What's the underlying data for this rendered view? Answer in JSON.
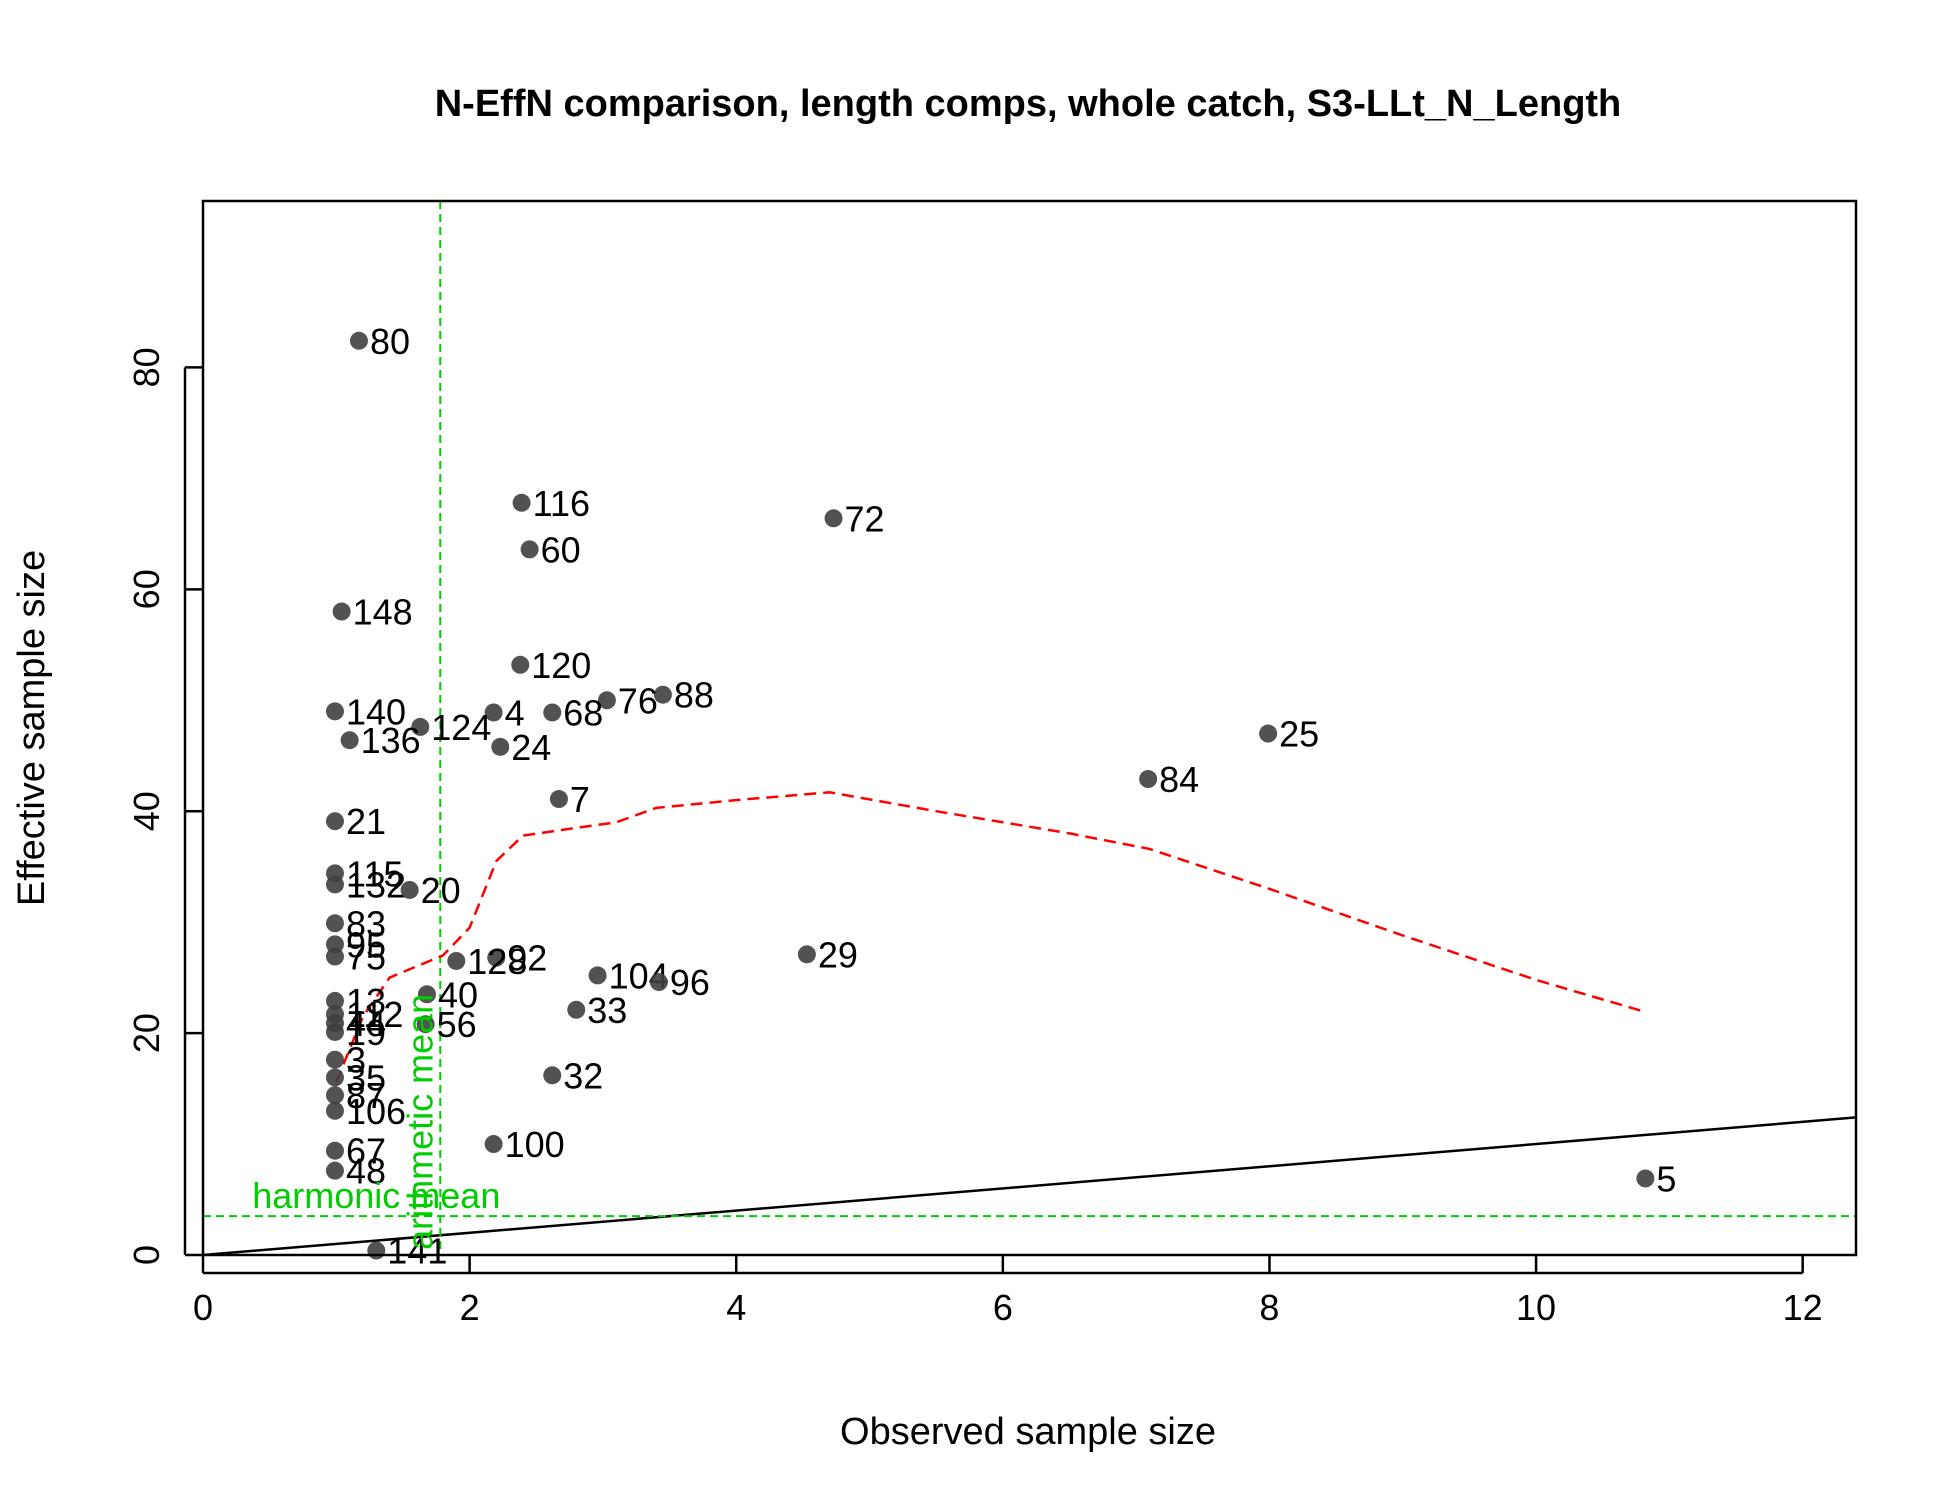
{
  "chart_data": {
    "type": "scatter",
    "title": "N-EffN comparison, length comps, whole catch, S3-LLt_N_Length",
    "xlabel": "Observed sample size",
    "ylabel": "Effective sample size",
    "xlim": [
      0,
      12.4
    ],
    "ylim": [
      0,
      95
    ],
    "xticks": [
      0,
      2,
      4,
      6,
      8,
      10,
      12
    ],
    "yticks": [
      0,
      20,
      40,
      60,
      80
    ],
    "colors": {
      "points": "#3f3f3f",
      "loess": "#ff0000",
      "reference": "#00cc00",
      "identity": "#000000"
    },
    "points": [
      {
        "label": "80",
        "x": 1.17,
        "y": 82.4
      },
      {
        "label": "116",
        "x": 2.39,
        "y": 67.8
      },
      {
        "label": "72",
        "x": 4.73,
        "y": 66.4
      },
      {
        "label": "60",
        "x": 2.45,
        "y": 63.6
      },
      {
        "label": "148",
        "x": 1.04,
        "y": 58.0
      },
      {
        "label": "120",
        "x": 2.38,
        "y": 53.2
      },
      {
        "label": "88",
        "x": 3.45,
        "y": 50.5
      },
      {
        "label": "76",
        "x": 3.03,
        "y": 50.0
      },
      {
        "label": "140",
        "x": 0.99,
        "y": 49.0
      },
      {
        "label": "4",
        "x": 2.18,
        "y": 48.9
      },
      {
        "label": "68",
        "x": 2.62,
        "y": 48.9
      },
      {
        "label": "124",
        "x": 1.63,
        "y": 47.6
      },
      {
        "label": "25",
        "x": 7.99,
        "y": 47.0
      },
      {
        "label": "136",
        "x": 1.1,
        "y": 46.4
      },
      {
        "label": "24",
        "x": 2.23,
        "y": 45.8
      },
      {
        "label": "84",
        "x": 7.09,
        "y": 42.9
      },
      {
        "label": "7",
        "x": 2.67,
        "y": 41.1
      },
      {
        "label": "21",
        "x": 0.99,
        "y": 39.1
      },
      {
        "label": "115",
        "x": 0.99,
        "y": 34.4
      },
      {
        "label": "132",
        "x": 0.99,
        "y": 33.4
      },
      {
        "label": "20",
        "x": 1.55,
        "y": 32.9
      },
      {
        "label": "83",
        "x": 0.99,
        "y": 29.9
      },
      {
        "label": "95",
        "x": 0.99,
        "y": 28.0
      },
      {
        "label": "29",
        "x": 4.53,
        "y": 27.1
      },
      {
        "label": "75",
        "x": 0.99,
        "y": 26.9
      },
      {
        "label": "92",
        "x": 2.2,
        "y": 26.8
      },
      {
        "label": "128",
        "x": 1.9,
        "y": 26.5
      },
      {
        "label": "104",
        "x": 2.96,
        "y": 25.2
      },
      {
        "label": "96",
        "x": 3.42,
        "y": 24.6
      },
      {
        "label": "40",
        "x": 1.68,
        "y": 23.5
      },
      {
        "label": "13",
        "x": 0.99,
        "y": 22.9
      },
      {
        "label": "33",
        "x": 2.8,
        "y": 22.1
      },
      {
        "label": "112",
        "x": 0.99,
        "y": 21.7
      },
      {
        "label": "44",
        "x": 0.99,
        "y": 20.9
      },
      {
        "label": "56",
        "x": 1.67,
        "y": 20.8
      },
      {
        "label": "19",
        "x": 0.99,
        "y": 20.1
      },
      {
        "label": "3",
        "x": 0.99,
        "y": 17.6
      },
      {
        "label": "32",
        "x": 2.62,
        "y": 16.2
      },
      {
        "label": "35",
        "x": 0.99,
        "y": 16.0
      },
      {
        "label": "87",
        "x": 0.99,
        "y": 14.4
      },
      {
        "label": "106",
        "x": 0.99,
        "y": 13.0
      },
      {
        "label": "100",
        "x": 2.18,
        "y": 10.0
      },
      {
        "label": "67",
        "x": 0.99,
        "y": 9.4
      },
      {
        "label": "48",
        "x": 0.99,
        "y": 7.6
      },
      {
        "label": "5",
        "x": 10.82,
        "y": 6.9
      },
      {
        "label": "141",
        "x": 1.3,
        "y": 0.4
      }
    ],
    "loess": [
      {
        "x": 1.0,
        "y": 15.6
      },
      {
        "x": 1.2,
        "y": 21.5
      },
      {
        "x": 1.4,
        "y": 25.0
      },
      {
        "x": 1.8,
        "y": 27.0
      },
      {
        "x": 2.0,
        "y": 29.5
      },
      {
        "x": 2.2,
        "y": 35.5
      },
      {
        "x": 2.4,
        "y": 37.8
      },
      {
        "x": 2.8,
        "y": 38.5
      },
      {
        "x": 3.1,
        "y": 39.0
      },
      {
        "x": 3.4,
        "y": 40.3
      },
      {
        "x": 4.0,
        "y": 41.0
      },
      {
        "x": 4.7,
        "y": 41.7
      },
      {
        "x": 5.5,
        "y": 40.0
      },
      {
        "x": 6.5,
        "y": 38.0
      },
      {
        "x": 7.1,
        "y": 36.6
      },
      {
        "x": 8.0,
        "y": 33.0
      },
      {
        "x": 9.0,
        "y": 28.8
      },
      {
        "x": 10.0,
        "y": 24.8
      },
      {
        "x": 10.82,
        "y": 21.9
      }
    ],
    "harmonic_mean_y": 3.5,
    "arithmetic_mean_x": 1.78,
    "harmonic_label": "harmonic mean",
    "arithmetic_label": "arithmetic mean"
  }
}
